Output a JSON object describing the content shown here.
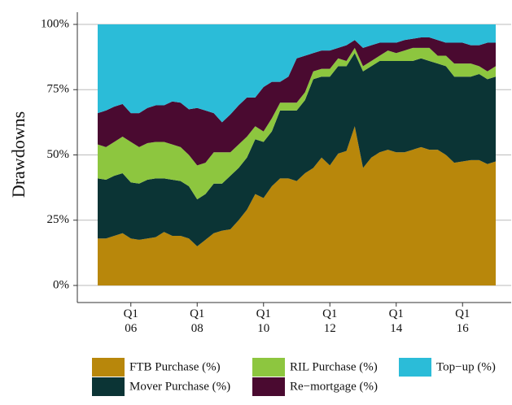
{
  "chart_data": {
    "type": "stacked-area",
    "y_label": "Drawdowns",
    "categories": [
      null,
      null,
      null,
      null,
      "Q1\n06",
      null,
      null,
      null,
      null,
      null,
      null,
      null,
      "Q1\n08",
      null,
      null,
      null,
      null,
      null,
      null,
      null,
      "Q1\n10",
      null,
      null,
      null,
      null,
      null,
      null,
      null,
      "Q1\n12",
      null,
      null,
      null,
      null,
      null,
      null,
      null,
      "Q1\n14",
      null,
      null,
      null,
      null,
      null,
      null,
      null,
      "Q1\n16",
      null,
      null,
      null,
      null
    ],
    "ylim": [
      0,
      100
    ],
    "yticks": [
      {
        "value": 0,
        "label": "0%"
      },
      {
        "value": 25,
        "label": "25%"
      },
      {
        "value": 50,
        "label": "50%"
      },
      {
        "value": 75,
        "label": "75%"
      },
      {
        "value": 100,
        "label": "100%"
      }
    ],
    "grid": true,
    "series": [
      {
        "name": "FTB Purchase (%)",
        "color": "#b8870b",
        "values": [
          18,
          18,
          19,
          20,
          18,
          17.5,
          18,
          18.5,
          20.5,
          19,
          19,
          18,
          15,
          17.5,
          20,
          21,
          21.5,
          25,
          29,
          35,
          33.5,
          38,
          41,
          41,
          40,
          43,
          45,
          49,
          46,
          50.5,
          51.5,
          61,
          45,
          49,
          51,
          52,
          51,
          51,
          52,
          53,
          52,
          52,
          50,
          47,
          47.5,
          48,
          48,
          46.5,
          47.5
        ]
      },
      {
        "name": "Mover Purchase (%)",
        "color": "#0b3435",
        "values": [
          23,
          22.5,
          23,
          23,
          21.5,
          21.5,
          22.5,
          22.5,
          20.5,
          21.5,
          21,
          20,
          18,
          17.5,
          19,
          18,
          20.5,
          20,
          20,
          21,
          21.5,
          21,
          26,
          26,
          27,
          28,
          34,
          31,
          34,
          33.5,
          32.5,
          28,
          37,
          35,
          35,
          34,
          35,
          35,
          34,
          34,
          34,
          33,
          34,
          33,
          32.5,
          32,
          33,
          32.5,
          32.5
        ]
      },
      {
        "name": "RIL Purchase (%)",
        "color": "#8dc63f",
        "values": [
          13,
          12.5,
          13,
          14,
          15.5,
          14,
          14,
          14,
          14,
          13.5,
          13,
          12,
          13,
          12,
          12,
          12,
          9,
          9,
          8,
          5,
          4,
          5,
          3,
          3,
          3,
          3,
          3,
          3,
          3,
          3,
          2,
          2,
          2,
          2,
          2,
          4,
          3,
          4,
          5,
          4,
          5,
          3,
          4,
          5,
          5,
          5,
          3,
          3,
          4
        ]
      },
      {
        "name": "Re−mortgage (%)",
        "color": "#4a0a30",
        "values": [
          12,
          14,
          13.5,
          12.5,
          11,
          13,
          13.5,
          14,
          14,
          16.5,
          17,
          17.5,
          22,
          20,
          15,
          11.5,
          14.5,
          15,
          15,
          11,
          17,
          14,
          8,
          10,
          17,
          14,
          7,
          7,
          7,
          4,
          6,
          3,
          7,
          6,
          5,
          3,
          4,
          4,
          3.5,
          4,
          4,
          6,
          5,
          8,
          8,
          7,
          8,
          11,
          9
        ]
      },
      {
        "name": "Top−up (%)",
        "color": "#2bbcd8",
        "values": [
          34,
          33,
          31.5,
          30.5,
          34,
          34,
          32,
          31,
          31,
          29.5,
          30,
          32.5,
          32,
          33,
          34,
          37.5,
          34.5,
          31,
          28,
          28,
          24,
          22,
          22,
          20,
          13,
          12,
          11,
          10,
          10,
          9,
          8,
          6,
          9,
          8,
          7,
          7,
          7,
          6,
          5.5,
          5,
          5,
          6,
          7,
          7,
          7,
          8,
          8,
          7,
          7
        ]
      }
    ]
  }
}
